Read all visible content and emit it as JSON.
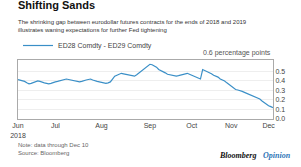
{
  "chart_data": {
    "type": "line",
    "title": "Shifting Sands",
    "subtitle": "The shrinking gap between eurodollar futures contracts for the ends of 2018 and 2019\nillustrates waning expectations for further Fed tightening",
    "annotations": [
      "0.6 percentage points",
      "Note: data through Dec 10\nSource: Bloomberg",
      "Bloomberg",
      "Opinion"
    ],
    "categories": [
      "Jun\n2018",
      null,
      null,
      null,
      null,
      null,
      null,
      null,
      null,
      null,
      null,
      null,
      null,
      null,
      null,
      null,
      null,
      "Jul",
      null,
      null,
      null,
      null,
      null,
      null,
      null,
      null,
      null,
      null,
      null,
      null,
      null,
      null,
      null,
      null,
      null,
      null,
      null,
      null,
      "Aug",
      null,
      null,
      null,
      null,
      null,
      null,
      null,
      null,
      null,
      null,
      null,
      null,
      null,
      null,
      null,
      null,
      null,
      null,
      null,
      null,
      null,
      "Sep",
      null,
      null,
      null,
      null,
      null,
      null,
      null,
      null,
      null,
      null,
      null,
      null,
      null,
      null,
      null,
      null,
      null,
      null,
      "Oct",
      null,
      null,
      null,
      null,
      null,
      null,
      null,
      null,
      null,
      null,
      null,
      null,
      null,
      null,
      null,
      null,
      null,
      "Nov",
      null,
      null,
      null,
      null,
      null,
      null,
      null,
      null,
      null,
      null,
      null,
      null,
      null,
      null,
      null,
      null,
      "Dec",
      null,
      null
    ],
    "series": [
      {
        "name": "ED28 Comdty - ED29 Comdty",
        "color": "#3a8fc7",
        "values": [
          0.415,
          0.41,
          0.405,
          0.395,
          0.38,
          0.37,
          0.375,
          0.385,
          0.39,
          0.4,
          0.395,
          0.385,
          0.38,
          0.375,
          0.37,
          0.375,
          0.385,
          0.39,
          0.395,
          0.4,
          0.405,
          0.415,
          0.42,
          0.415,
          0.41,
          0.405,
          0.4,
          0.395,
          0.39,
          0.395,
          0.405,
          0.41,
          0.415,
          0.42,
          0.41,
          0.4,
          0.395,
          0.39,
          0.385,
          0.38,
          0.375,
          0.38,
          0.39,
          0.42,
          0.45,
          0.46,
          0.47,
          0.48,
          0.475,
          0.47,
          0.465,
          0.46,
          0.455,
          0.45,
          0.465,
          0.485,
          0.5,
          0.52,
          0.54,
          0.56,
          0.575,
          0.57,
          0.56,
          0.545,
          0.52,
          0.51,
          0.5,
          0.485,
          0.47,
          0.465,
          0.46,
          0.455,
          0.45,
          0.455,
          0.46,
          0.465,
          0.475,
          0.48,
          0.47,
          0.46,
          0.45,
          0.44,
          0.43,
          0.42,
          0.52,
          0.51,
          0.5,
          0.49,
          0.475,
          0.46,
          0.45,
          0.44,
          0.42,
          0.41,
          0.4,
          0.38,
          0.36,
          0.34,
          0.32,
          0.31,
          0.305,
          0.3,
          0.29,
          0.28,
          0.27,
          0.26,
          0.25,
          0.24,
          0.23,
          0.22,
          0.21,
          0.19,
          0.17,
          0.155,
          0.14,
          0.13,
          0.12
        ]
      }
    ],
    "ylim": [
      0.0,
      0.62
    ],
    "yticks": [
      {
        "value": 0.0,
        "label": "0.0"
      },
      0.1,
      0.2,
      0.3,
      0.4,
      0.5
    ],
    "grid": true,
    "legend": "upper left"
  }
}
